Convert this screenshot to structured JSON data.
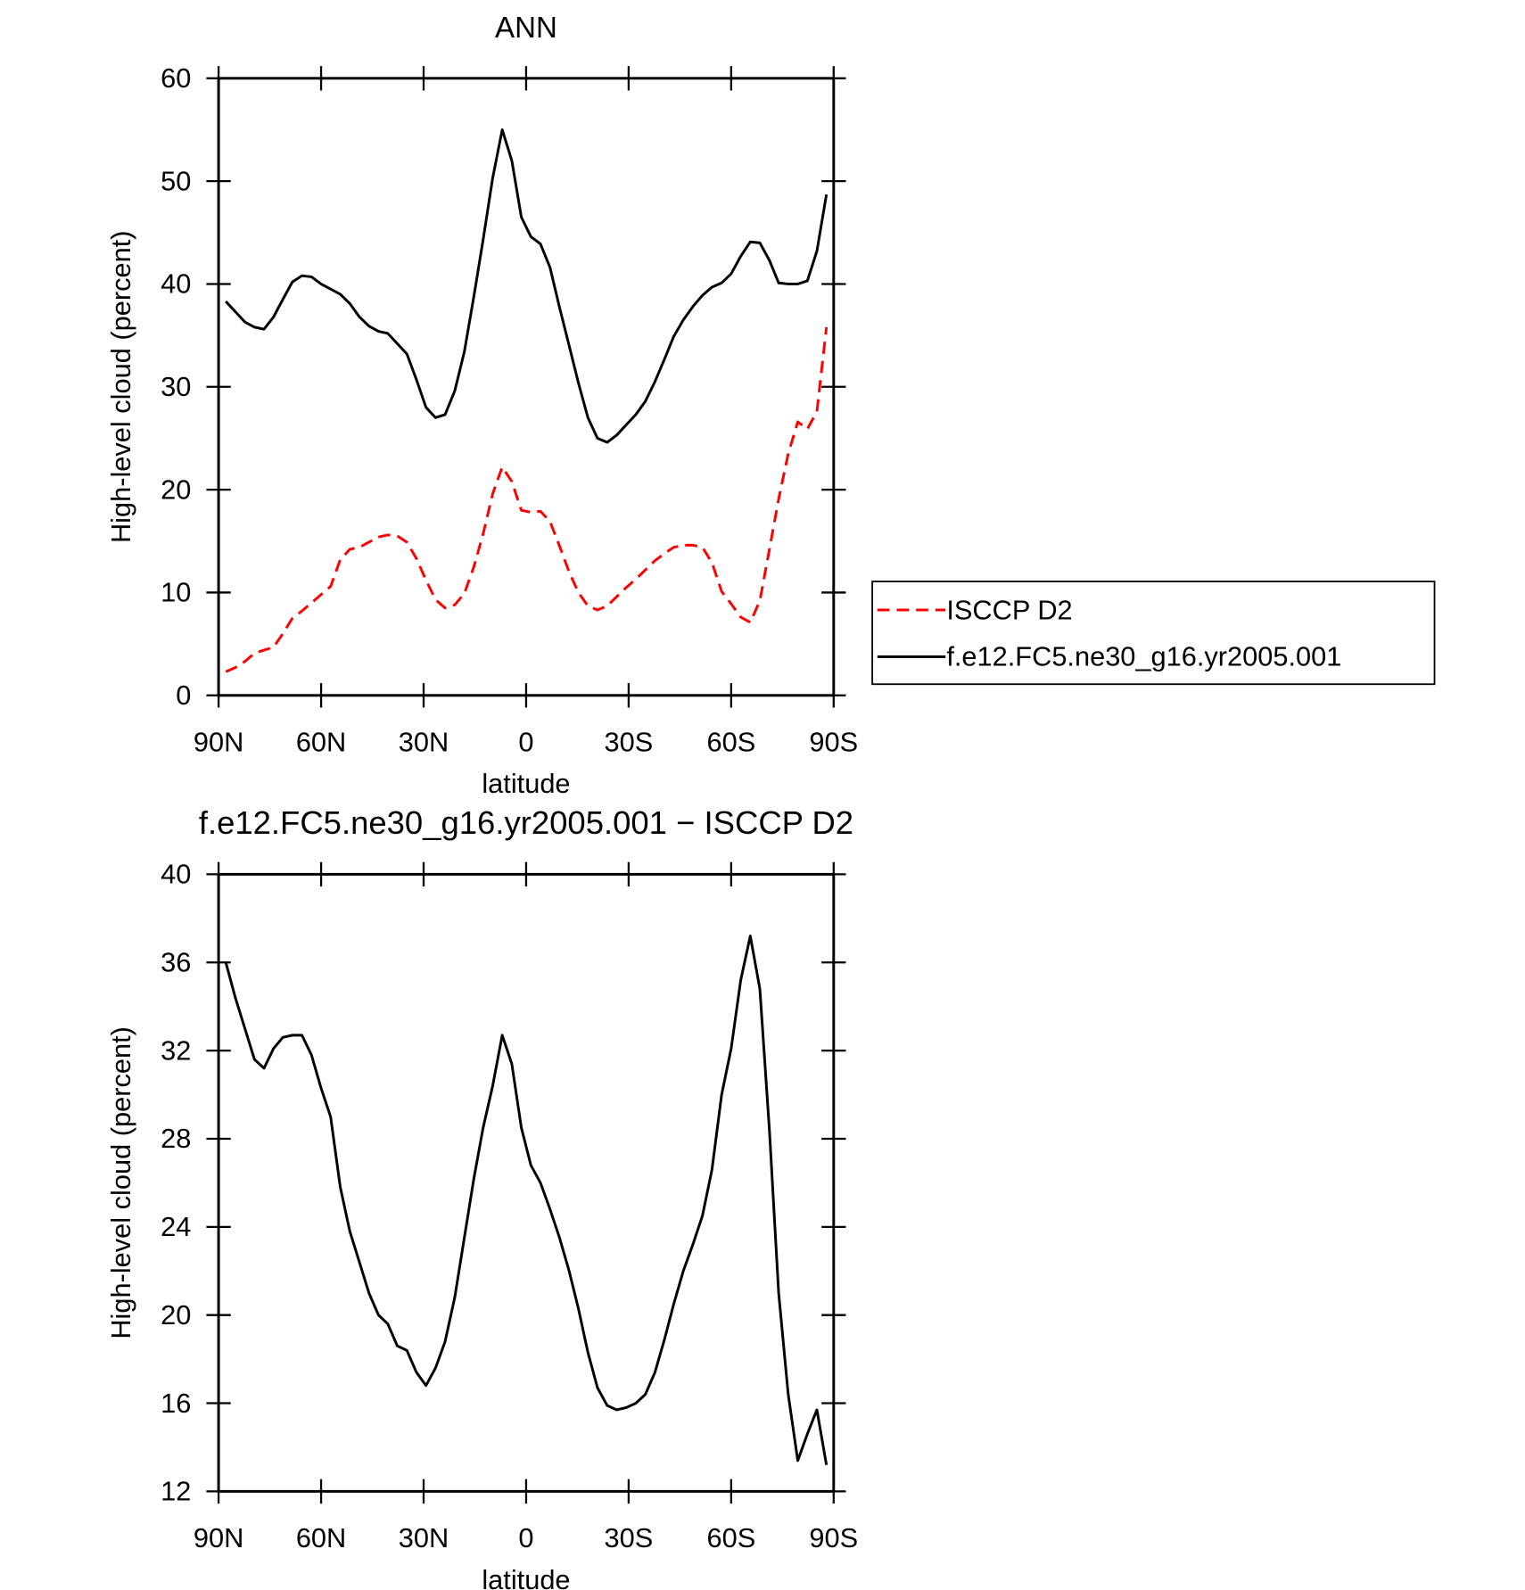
{
  "chart_data": [
    {
      "type": "line",
      "title": "ANN",
      "xlabel": "latitude",
      "ylabel": "High-level cloud (percent)",
      "xlim": [
        90,
        -90
      ],
      "xticks": [
        {
          "value": 90,
          "label": "90N"
        },
        {
          "value": 60,
          "label": "60N"
        },
        {
          "value": 30,
          "label": "30N"
        },
        0,
        {
          "value": -30,
          "label": "30S"
        },
        {
          "value": -60,
          "label": "60S"
        },
        {
          "value": -90,
          "label": "90S"
        }
      ],
      "ylim": [
        0,
        60
      ],
      "yticks": [
        0,
        10,
        20,
        30,
        40,
        50,
        60
      ],
      "legend": "outside right",
      "x": [
        87.9,
        85.1,
        82.3,
        79.5,
        76.7,
        73.9,
        71.2,
        68.4,
        65.6,
        62.8,
        60.0,
        57.2,
        54.4,
        51.6,
        48.8,
        46.0,
        43.2,
        40.5,
        37.7,
        34.9,
        32.1,
        29.3,
        26.5,
        23.7,
        20.9,
        18.1,
        15.3,
        12.6,
        9.8,
        7.0,
        4.2,
        1.4,
        -1.4,
        -4.2,
        -7.0,
        -9.8,
        -12.6,
        -15.3,
        -18.1,
        -20.9,
        -23.7,
        -26.5,
        -29.3,
        -32.1,
        -34.9,
        -37.7,
        -40.5,
        -43.2,
        -46.0,
        -48.8,
        -51.6,
        -54.4,
        -57.2,
        -60.0,
        -62.8,
        -65.6,
        -68.4,
        -71.2,
        -73.9,
        -76.7,
        -79.5,
        -82.3,
        -85.1,
        -87.9
      ],
      "series": [
        {
          "name": "ISCCP D2",
          "color": "#ff0000",
          "dash": "dashed",
          "values": [
            2.3,
            2.7,
            3.3,
            4.1,
            4.4,
            4.7,
            6.0,
            7.5,
            8.2,
            9.0,
            9.8,
            10.6,
            13.2,
            14.2,
            14.4,
            14.9,
            15.4,
            15.6,
            15.5,
            14.9,
            13.3,
            11.2,
            9.3,
            8.5,
            8.8,
            9.9,
            12.5,
            15.7,
            19.6,
            22.2,
            20.8,
            18.0,
            17.8,
            17.9,
            16.9,
            14.5,
            12.0,
            10.0,
            8.7,
            8.3,
            8.7,
            9.6,
            10.5,
            11.3,
            12.2,
            13.1,
            13.8,
            14.4,
            14.6,
            14.6,
            14.4,
            12.9,
            10.1,
            8.9,
            7.6,
            7.1,
            9.2,
            14.2,
            19.1,
            23.5,
            26.6,
            25.9,
            27.6,
            35.8
          ]
        },
        {
          "name": "f.e12.FC5.ne30_g16.yr2005.001",
          "color": "#000000",
          "dash": "solid",
          "values": [
            38.3,
            37.3,
            36.3,
            35.8,
            35.6,
            36.8,
            38.5,
            40.2,
            40.8,
            40.7,
            40.0,
            39.5,
            39.0,
            38.1,
            36.8,
            35.9,
            35.4,
            35.2,
            34.2,
            33.2,
            30.7,
            28.0,
            27.0,
            27.3,
            29.6,
            33.4,
            38.8,
            44.3,
            50.3,
            55.0,
            52.0,
            46.5,
            44.6,
            43.9,
            41.6,
            37.7,
            34.0,
            30.4,
            27.0,
            25.0,
            24.6,
            25.3,
            26.3,
            27.3,
            28.6,
            30.5,
            32.7,
            34.9,
            36.5,
            37.8,
            38.9,
            39.7,
            40.1,
            41.0,
            42.7,
            44.1,
            44.0,
            42.3,
            40.1,
            40.0,
            40.0,
            40.3,
            43.2,
            48.7
          ]
        }
      ]
    },
    {
      "type": "line",
      "title": "f.e12.FC5.ne30_g16.yr2005.001 − ISCCP D2",
      "xlabel": "latitude",
      "ylabel": "High-level cloud (percent)",
      "xlim": [
        90,
        -90
      ],
      "xticks": [
        {
          "value": 90,
          "label": "90N"
        },
        {
          "value": 60,
          "label": "60N"
        },
        {
          "value": 30,
          "label": "30N"
        },
        0,
        {
          "value": -30,
          "label": "30S"
        },
        {
          "value": -60,
          "label": "60S"
        },
        {
          "value": -90,
          "label": "90S"
        }
      ],
      "ylim": [
        12,
        40
      ],
      "yticks": [
        12,
        16,
        20,
        24,
        28,
        32,
        36,
        40
      ],
      "x": [
        87.9,
        85.1,
        82.3,
        79.5,
        76.7,
        73.9,
        71.2,
        68.4,
        65.6,
        62.8,
        60.0,
        57.2,
        54.4,
        51.6,
        48.8,
        46.0,
        43.2,
        40.5,
        37.7,
        34.9,
        32.1,
        29.3,
        26.5,
        23.7,
        20.9,
        18.1,
        15.3,
        12.6,
        9.8,
        7.0,
        4.2,
        1.4,
        -1.4,
        -4.2,
        -7.0,
        -9.8,
        -12.6,
        -15.3,
        -18.1,
        -20.9,
        -23.7,
        -26.5,
        -29.3,
        -32.1,
        -34.9,
        -37.7,
        -40.5,
        -43.2,
        -46.0,
        -48.8,
        -51.6,
        -54.4,
        -57.2,
        -60.0,
        -62.8,
        -65.6,
        -68.4,
        -71.2,
        -73.9,
        -76.7,
        -79.5,
        -82.3,
        -85.1,
        -87.9
      ],
      "series": [
        {
          "color": "#000000",
          "dash": "solid",
          "values": [
            36.0,
            34.4,
            33.0,
            31.6,
            31.2,
            32.1,
            32.6,
            32.7,
            32.7,
            31.8,
            30.3,
            29.0,
            25.8,
            23.8,
            22.4,
            21.0,
            20.0,
            19.6,
            18.6,
            18.4,
            17.4,
            16.8,
            17.6,
            18.8,
            20.8,
            23.5,
            26.2,
            28.5,
            30.4,
            32.7,
            31.4,
            28.5,
            26.8,
            26.0,
            24.8,
            23.5,
            22.0,
            20.3,
            18.3,
            16.7,
            15.9,
            15.7,
            15.8,
            16.0,
            16.4,
            17.4,
            18.9,
            20.5,
            22.0,
            23.2,
            24.5,
            26.6,
            30.0,
            32.1,
            35.2,
            37.2,
            34.8,
            28.4,
            21.0,
            16.4,
            13.4,
            14.6,
            15.7,
            13.2
          ]
        }
      ]
    }
  ]
}
